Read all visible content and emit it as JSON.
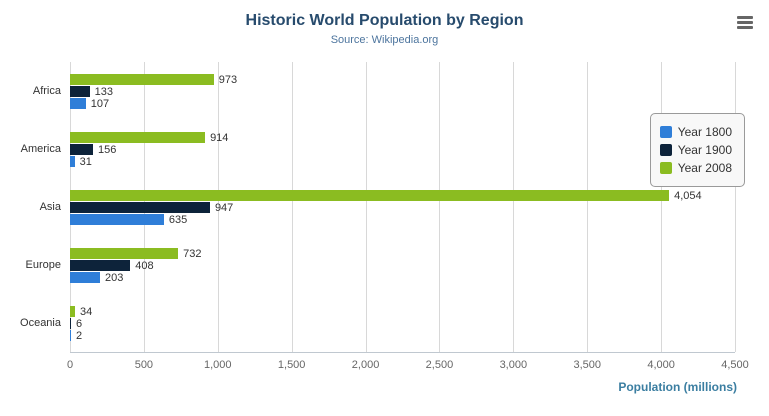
{
  "title": "Historic World Population by Region",
  "subtitle": "Source: Wikipedia.org",
  "menu_icon": "hamburger-menu-icon",
  "colors": {
    "title": "#274b6d",
    "subtitle": "#4d759e",
    "axis_title": "#3b7ea1",
    "gridline": "#d8d8d8",
    "tick_label": "#666666",
    "category_label": "#333333"
  },
  "xaxis": {
    "title": "Population (millions)",
    "tick_labels": [
      "0",
      "500",
      "1,000",
      "1,500",
      "2,000",
      "2,500",
      "3,000",
      "3,500",
      "4,000",
      "4,500"
    ]
  },
  "chart_data": {
    "type": "bar",
    "orientation": "horizontal",
    "title": "Historic World Population by Region",
    "subtitle": "Source: Wikipedia.org",
    "xlabel": "Population (millions)",
    "ylabel": "",
    "xlim": [
      0,
      4500
    ],
    "tick_interval": 500,
    "grid": true,
    "legend_position": "right",
    "categories": [
      "Africa",
      "America",
      "Asia",
      "Europe",
      "Oceania"
    ],
    "series": [
      {
        "name": "Year 1800",
        "color": "#2f7ed8",
        "values": [
          107,
          31,
          635,
          203,
          2
        ]
      },
      {
        "name": "Year 1900",
        "color": "#0d233a",
        "values": [
          133,
          156,
          947,
          408,
          6
        ]
      },
      {
        "name": "Year 2008",
        "color": "#8bbc21",
        "values": [
          973,
          914,
          4054,
          732,
          34
        ]
      }
    ],
    "data_labels": {
      "Year 1800": [
        "107",
        "31",
        "635",
        "203",
        "2"
      ],
      "Year 1900": [
        "133",
        "156",
        "947",
        "408",
        "6"
      ],
      "Year 2008": [
        "973",
        "914",
        "4,054",
        "732",
        "34"
      ]
    }
  },
  "legend": {
    "items": [
      {
        "label": "Year 1800",
        "color": "#2f7ed8"
      },
      {
        "label": "Year 1900",
        "color": "#0d233a"
      },
      {
        "label": "Year 2008",
        "color": "#8bbc21"
      }
    ]
  }
}
